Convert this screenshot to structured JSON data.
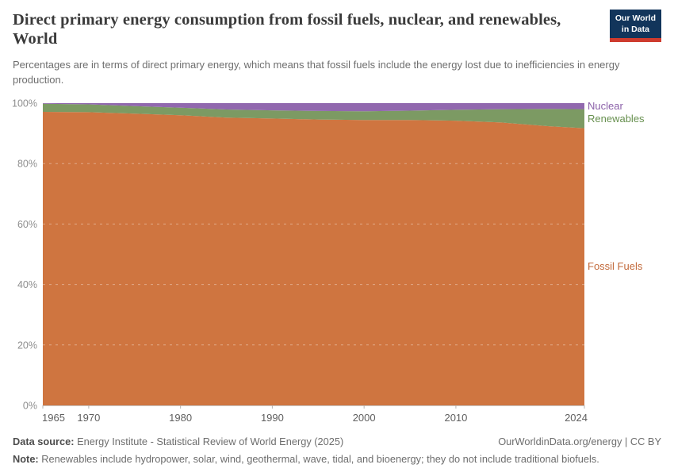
{
  "header": {
    "title": "Direct primary energy consumption from fossil fuels, nuclear, and renewables, World",
    "subtitle": "Percentages are in terms of direct primary energy, which means that fossil fuels include the energy lost due to inefficiencies in energy production."
  },
  "logo": {
    "line1": "Our World",
    "line2": "in Data",
    "bg_color": "#12355B",
    "bar_color": "#CE3B2E"
  },
  "chart_data": {
    "type": "area",
    "stacked": true,
    "unit": "%",
    "title": "Direct primary energy consumption from fossil fuels, nuclear, and renewables, World",
    "xlabel": "",
    "ylabel": "",
    "ylim": [
      0,
      100
    ],
    "x_range": [
      1965,
      2024
    ],
    "x_ticks": [
      1965,
      1970,
      1980,
      1990,
      2000,
      2010,
      2024
    ],
    "y_ticks": [
      0,
      20,
      40,
      60,
      80,
      100
    ],
    "y_tick_suffix": "%",
    "grid": "dashed-horizontal",
    "legend_position": "right-inline-labels",
    "x": [
      1965,
      1970,
      1975,
      1980,
      1985,
      1990,
      1995,
      2000,
      2005,
      2010,
      2015,
      2020,
      2024
    ],
    "series": [
      {
        "name": "Fossil Fuels",
        "color": "#CF7540",
        "label_color": "#C2693A",
        "values": [
          97.1,
          97.0,
          96.5,
          96.0,
          95.2,
          94.9,
          94.6,
          94.4,
          94.4,
          94.2,
          93.6,
          92.4,
          91.7
        ]
      },
      {
        "name": "Renewables",
        "color": "#7C9A63",
        "label_color": "#67904F",
        "values": [
          2.7,
          2.6,
          2.5,
          2.5,
          2.7,
          2.7,
          2.8,
          2.9,
          3.1,
          3.6,
          4.4,
          5.7,
          6.3
        ]
      },
      {
        "name": "Nuclear",
        "color": "#9168AE",
        "label_color": "#8A5FA8",
        "values": [
          0.2,
          0.4,
          1.0,
          1.5,
          2.1,
          2.4,
          2.6,
          2.7,
          2.5,
          2.2,
          2.0,
          1.9,
          2.0
        ]
      }
    ]
  },
  "footer": {
    "data_source_label": "Data source:",
    "data_source_text": "Energy Institute - Statistical Review of World Energy (2025)",
    "right_text": "OurWorldinData.org/energy | CC BY",
    "note_label": "Note:",
    "note_text": "Renewables include hydropower, solar, wind, geothermal, wave, tidal, and bioenergy; they do not include traditional biofuels."
  }
}
